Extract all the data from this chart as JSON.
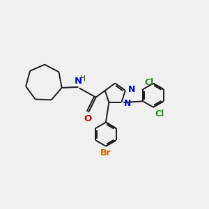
{
  "background_color": "#f0f0f0",
  "bond_color": "#1a1a1a",
  "N_color": "#0000cc",
  "O_color": "#cc0000",
  "Br_color": "#cc6600",
  "Cl_color": "#228B22",
  "line_width": 1.4,
  "font_size": 8.5,
  "figsize": [
    3.0,
    3.0
  ],
  "dpi": 100,
  "xlim": [
    0,
    10
  ],
  "ylim": [
    0,
    10
  ]
}
